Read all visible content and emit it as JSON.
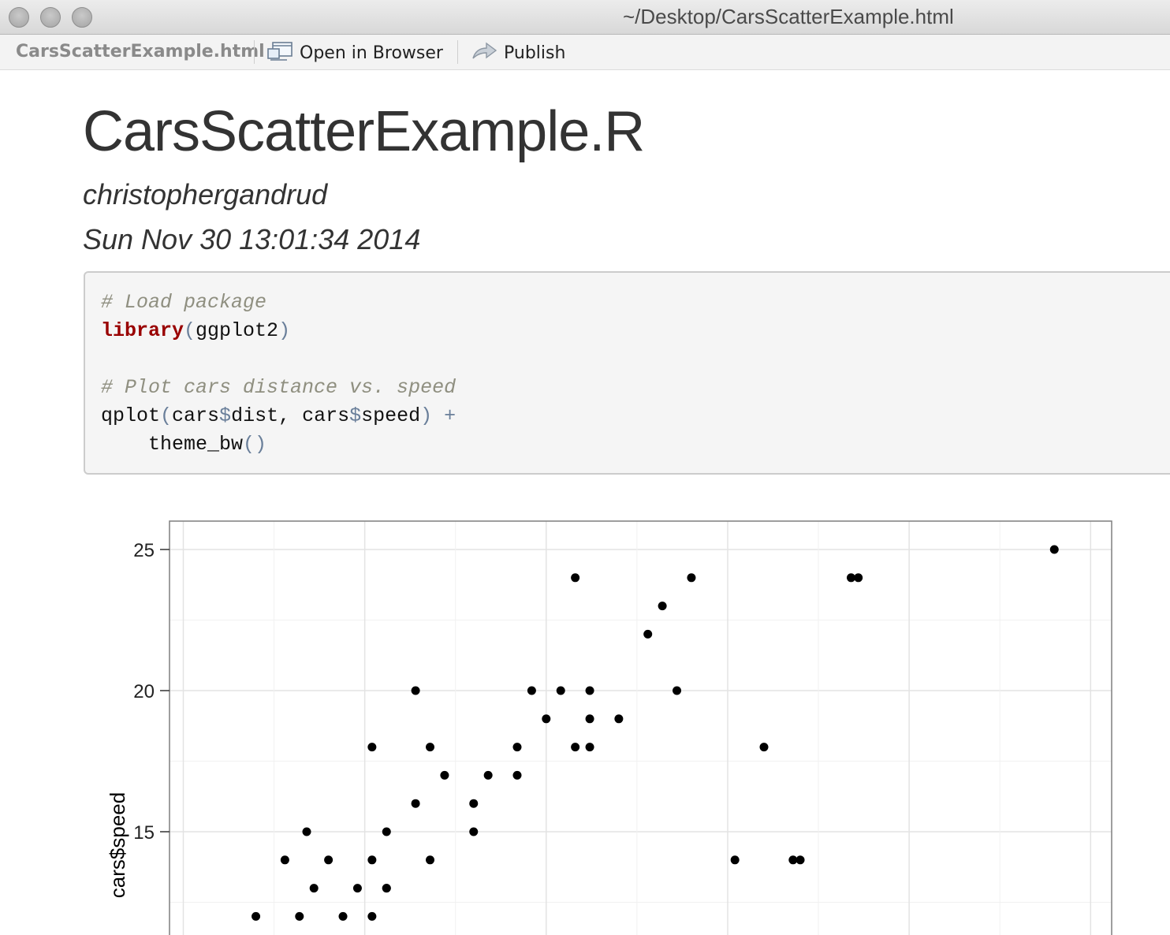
{
  "window": {
    "title": "~/Desktop/CarsScatterExample.html"
  },
  "toolbar": {
    "file_label": "CarsScatterExample.html",
    "open_label": "Open in Browser",
    "open_icon": "open-in-browser-icon",
    "publish_label": "Publish",
    "publish_icon": "publish-icon"
  },
  "document": {
    "title": "CarsScatterExample.R",
    "author": "christophergandrud",
    "date": "Sun Nov 30 13:01:34 2014"
  },
  "code": {
    "comment1": "# Load package",
    "kw_library": "library",
    "paren_open": "(",
    "arg_pkg": "ggplot2",
    "paren_close": ")",
    "comment2": "# Plot cars distance vs. speed",
    "fn_qplot": "qplot",
    "dist_obj": "cars",
    "dollar": "$",
    "dist_field": "dist, ",
    "speed_obj": "cars",
    "speed_field": "speed",
    "plus": " +",
    "indent_theme": "    theme_bw",
    "theme_parens": "()"
  },
  "chart_data": {
    "type": "scatter",
    "ylabel": "cars$speed",
    "xlabel": "",
    "yticks": [
      15,
      20,
      25
    ],
    "ylim_visible": [
      12,
      26
    ],
    "xlim": [
      -1.9,
      127.9
    ],
    "grid": true,
    "theme": "bw",
    "point_color": "#000000",
    "x": [
      10,
      16,
      26,
      22,
      18,
      28,
      24,
      28,
      14,
      20,
      26,
      34,
      17,
      28,
      40,
      32,
      40,
      36,
      46,
      42,
      34,
      46,
      26,
      54,
      60,
      50,
      56,
      68,
      32,
      48,
      52,
      56,
      64,
      66,
      54,
      70,
      92,
      93,
      120,
      85,
      76,
      84,
      80,
      56
    ],
    "y": [
      12,
      12,
      12,
      12,
      13,
      13,
      13,
      13,
      14,
      14,
      14,
      14,
      15,
      15,
      15,
      16,
      16,
      17,
      17,
      17,
      18,
      18,
      18,
      18,
      19,
      19,
      19,
      20,
      20,
      20,
      20,
      20,
      22,
      23,
      24,
      24,
      24,
      24,
      25,
      14,
      14,
      14,
      18,
      18
    ]
  }
}
